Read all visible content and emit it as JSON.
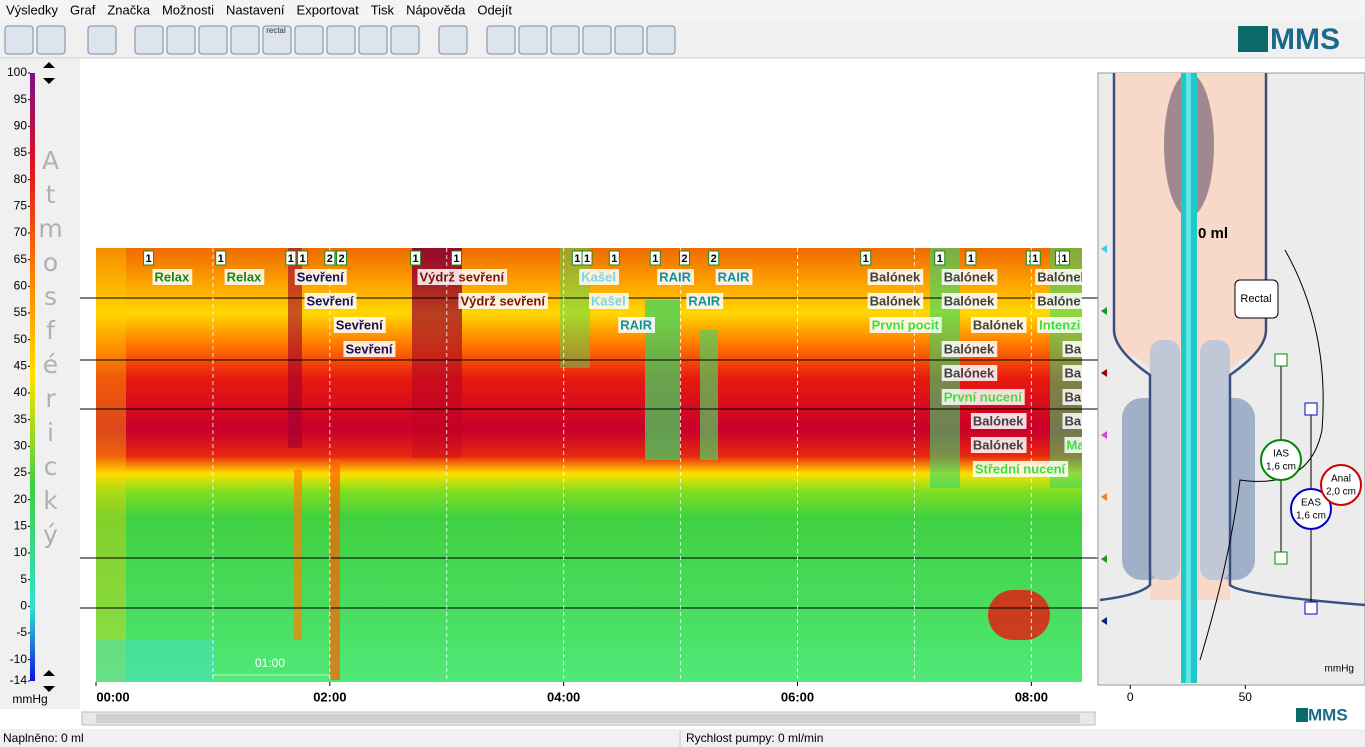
{
  "menu": [
    "Výsledky",
    "Graf",
    "Značka",
    "Možnosti",
    "Nastavení",
    "Exportovat",
    "Tisk",
    "Nápověda",
    "Odejít"
  ],
  "toolbar": {
    "icon_label": "rectal",
    "logo": "MMS"
  },
  "scale": {
    "label": "Atmosférický",
    "unit": "mmHg",
    "ylim": [
      -14,
      100
    ],
    "yticks": [
      100,
      95,
      90,
      85,
      80,
      75,
      70,
      65,
      60,
      55,
      50,
      45,
      40,
      35,
      30,
      25,
      20,
      15,
      10,
      5,
      0,
      -5,
      -10,
      -14
    ]
  },
  "plot": {
    "xlim": [
      0,
      506
    ],
    "xticks": [
      {
        "value": 0,
        "label": "00:00"
      },
      {
        "value": 120,
        "label": "02:00"
      },
      {
        "value": 240,
        "label": "04:00"
      },
      {
        "value": 360,
        "label": "06:00"
      },
      {
        "value": 480,
        "label": "08:00"
      }
    ],
    "xgrid": [
      60,
      120,
      180,
      240,
      300,
      360,
      420,
      480
    ],
    "overview_label": "01:00",
    "markers": [
      {
        "time": 27,
        "label": "1"
      },
      {
        "time": 64,
        "label": "1"
      },
      {
        "time": 100,
        "label": "1"
      },
      {
        "time": 106,
        "label": "1"
      },
      {
        "time": 120,
        "label": "2"
      },
      {
        "time": 126,
        "label": "2"
      },
      {
        "time": 164,
        "label": "1"
      },
      {
        "time": 185,
        "label": "1"
      },
      {
        "time": 247,
        "label": "1"
      },
      {
        "time": 252,
        "label": "1"
      },
      {
        "time": 266,
        "label": "1"
      },
      {
        "time": 287,
        "label": "1"
      },
      {
        "time": 302,
        "label": "2"
      },
      {
        "time": 317,
        "label": "2"
      },
      {
        "time": 395,
        "label": "1"
      },
      {
        "time": 433,
        "label": "1"
      },
      {
        "time": 449,
        "label": "1"
      },
      {
        "time": 480,
        "label": "1"
      },
      {
        "time": 482,
        "label": "1"
      },
      {
        "time": 495,
        "label": "1"
      },
      {
        "time": 497,
        "label": "1"
      }
    ],
    "annotations": [
      {
        "time": 29,
        "text": "Relax",
        "color": "#14861e"
      },
      {
        "time": 66,
        "text": "Relax",
        "color": "#14861e"
      },
      {
        "time": 102,
        "text": "Sevření",
        "color": "#101060"
      },
      {
        "time": 107,
        "text": "Sevření",
        "color": "#101060"
      },
      {
        "time": 122,
        "text": "Sevření",
        "color": "#101060"
      },
      {
        "time": 127,
        "text": "Sevření",
        "color": "#101060"
      },
      {
        "time": 165,
        "text": "Výdrž sevření",
        "color": "#801010"
      },
      {
        "time": 186,
        "text": "Výdrž sevření",
        "color": "#801010"
      },
      {
        "time": 248,
        "text": "Kašel",
        "color": "#70d8f0"
      },
      {
        "time": 253,
        "text": "Kašel",
        "color": "#70d8f0"
      },
      {
        "time": 268,
        "text": "RAIR",
        "color": "#1090a8"
      },
      {
        "time": 288,
        "text": "RAIR",
        "color": "#1090a8"
      },
      {
        "time": 303,
        "text": "RAIR",
        "color": "#1090a8"
      },
      {
        "time": 318,
        "text": "RAIR",
        "color": "#1090a8"
      },
      {
        "time": 396,
        "text": "Balónek",
        "color": "#404040"
      },
      {
        "time": 396,
        "text": "Balónek",
        "color": "#404040"
      },
      {
        "time": 397,
        "text": "První pocit",
        "color": "#3ee03e"
      },
      {
        "time": 434,
        "text": "Balónek",
        "color": "#404040"
      },
      {
        "time": 434,
        "text": "Balónek",
        "color": "#404040"
      },
      {
        "time": 434,
        "text": "Balónek",
        "color": "#404040"
      },
      {
        "time": 434,
        "text": "Balónek",
        "color": "#404040"
      },
      {
        "time": 434,
        "text": "První nucení",
        "color": "#3ee03e"
      },
      {
        "time": 449,
        "text": "Balónek",
        "color": "#404040"
      },
      {
        "time": 449,
        "text": "Balónek",
        "color": "#404040"
      },
      {
        "time": 449,
        "text": "Balónek",
        "color": "#404040"
      },
      {
        "time": 450,
        "text": "Střední nucení",
        "color": "#3ee03e"
      },
      {
        "time": 482,
        "text": "Balónek",
        "color": "#404040"
      },
      {
        "time": 482,
        "text": "Balóne",
        "color": "#404040"
      },
      {
        "time": 483,
        "text": "Intenzi",
        "color": "#3ee03e"
      },
      {
        "time": 496,
        "text": "Ba",
        "color": "#404040"
      },
      {
        "time": 496,
        "text": "Ba",
        "color": "#404040"
      },
      {
        "time": 496,
        "text": "Ba",
        "color": "#404040"
      },
      {
        "time": 496,
        "text": "Ba",
        "color": "#404040"
      },
      {
        "time": 497,
        "text": "Ma",
        "color": "#3ee03e"
      }
    ]
  },
  "anatomy": {
    "volume": "0 ml",
    "rectal": "Rectal",
    "ias": [
      "IAS",
      "1,6 cm"
    ],
    "eas": [
      "EAS",
      "1,6 cm"
    ],
    "anal": [
      "Anal",
      "2,0 cm"
    ],
    "unit": "mmHg",
    "xlim": [
      -14,
      102
    ],
    "xticks": [
      0,
      50
    ]
  },
  "footer_logo": "MMS",
  "status": {
    "filled": "Naplněno: 0 ml",
    "pump": "Rychlost pumpy: 0 ml/min"
  }
}
